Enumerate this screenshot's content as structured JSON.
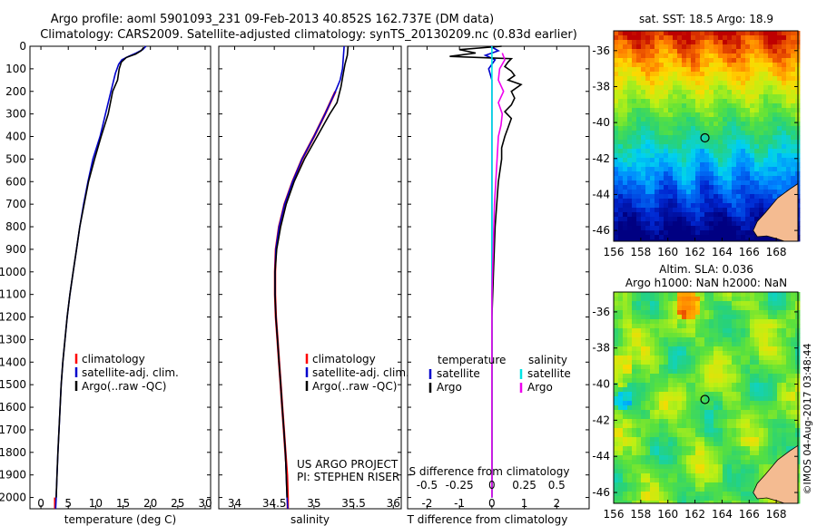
{
  "header": {
    "title_line1": "Argo profile: aoml 5901093_231 09-Feb-2013 40.852S 162.737E (DM data)",
    "title_line2": "Climatology: CARS2009. Satellite-adjusted climatology: synTS_20130209.nc (0.83d earlier)"
  },
  "watermark": "©IMOS 04-Aug-2017 03:48:44",
  "colors": {
    "climatology": "#ff0000",
    "satellite": "#0000cc",
    "argo": "#000000",
    "salinity_satellite": "#00e5e5",
    "salinity_argo": "#ee00ee",
    "land": "#f4bb91"
  },
  "chart_data": [
    {
      "id": "temperature",
      "type": "line",
      "xlabel": "temperature (deg C)",
      "xlim": [
        -2,
        31
      ],
      "xticks": [
        "0",
        "5",
        "10",
        "15",
        "20",
        "25",
        "30"
      ],
      "ylim": [
        2050,
        0
      ],
      "yticks": [
        "0",
        "100",
        "200",
        "300",
        "400",
        "500",
        "600",
        "700",
        "800",
        "900",
        "1000",
        "1100",
        "1200",
        "1300",
        "1400",
        "1500",
        "1600",
        "1700",
        "1800",
        "1900",
        "2000"
      ],
      "legend": [
        "climatology",
        "satellite-adj. clim.",
        "Argo(..raw -QC)"
      ],
      "series": [
        {
          "name": "climatology",
          "color": "#ff0000",
          "points": [
            [
              2.6,
              2000
            ],
            [
              2.6,
              2050
            ]
          ]
        },
        {
          "name": "satellite-adj. clim.",
          "color": "#0000cc",
          "points": [
            [
              19.2,
              0
            ],
            [
              18.6,
              15
            ],
            [
              17.4,
              30
            ],
            [
              16,
              45
            ],
            [
              14.8,
              60
            ],
            [
              14.2,
              80
            ],
            [
              13.6,
              120
            ],
            [
              12.8,
              200
            ],
            [
              11.8,
              300
            ],
            [
              10.8,
              400
            ],
            [
              9.5,
              500
            ],
            [
              8.6,
              600
            ],
            [
              7.8,
              700
            ],
            [
              7.1,
              800
            ],
            [
              6.5,
              900
            ],
            [
              5.9,
              1000
            ],
            [
              5.3,
              1100
            ],
            [
              4.8,
              1200
            ],
            [
              4.4,
              1300
            ],
            [
              4.0,
              1400
            ],
            [
              3.7,
              1500
            ],
            [
              3.5,
              1600
            ],
            [
              3.3,
              1700
            ],
            [
              3.1,
              1800
            ],
            [
              2.95,
              1900
            ],
            [
              2.8,
              2000
            ],
            [
              2.7,
              2050
            ]
          ]
        },
        {
          "name": "Argo(..raw -QC)",
          "color": "#000000",
          "points": [
            [
              18.8,
              5
            ],
            [
              18.3,
              20
            ],
            [
              17.3,
              35
            ],
            [
              15.6,
              50
            ],
            [
              14.7,
              70
            ],
            [
              14.3,
              100
            ],
            [
              14.0,
              150
            ],
            [
              13.1,
              200
            ],
            [
              12.3,
              300
            ],
            [
              11.0,
              400
            ],
            [
              9.8,
              500
            ],
            [
              8.7,
              600
            ],
            [
              7.9,
              700
            ],
            [
              7.1,
              800
            ],
            [
              6.5,
              900
            ],
            [
              5.9,
              1000
            ],
            [
              5.3,
              1100
            ],
            [
              4.8,
              1200
            ],
            [
              4.4,
              1300
            ],
            [
              4.0,
              1400
            ],
            [
              3.7,
              1500
            ],
            [
              3.5,
              1600
            ],
            [
              3.3,
              1700
            ],
            [
              3.1,
              1800
            ],
            [
              2.95,
              1900
            ],
            [
              2.8,
              2000
            ]
          ]
        }
      ]
    },
    {
      "id": "salinity",
      "type": "line",
      "xlabel": "salinity",
      "xlim": [
        33.8,
        36.1
      ],
      "xticks": [
        "34",
        "34.5",
        "35",
        "35.5",
        "36"
      ],
      "ylim": [
        2050,
        0
      ],
      "legend": [
        "climatology",
        "satellite-adj. clim.",
        "Argo(..raw -QC)"
      ],
      "annotation_line1": "US ARGO PROJECT",
      "annotation_line2": "PI: STEPHEN RISER",
      "series": [
        {
          "name": "climatology",
          "color": "#ff0000",
          "points": [
            [
              35.27,
              200
            ],
            [
              35.14,
              300
            ],
            [
              35.0,
              400
            ],
            [
              34.85,
              500
            ],
            [
              34.73,
              600
            ],
            [
              34.63,
              700
            ],
            [
              34.56,
              800
            ],
            [
              34.52,
              900
            ],
            [
              34.51,
              1000
            ],
            [
              34.51,
              1100
            ],
            [
              34.52,
              1200
            ],
            [
              34.54,
              1300
            ],
            [
              34.56,
              1400
            ],
            [
              34.58,
              1500
            ],
            [
              34.6,
              1600
            ],
            [
              34.62,
              1700
            ],
            [
              34.64,
              1800
            ],
            [
              34.66,
              1900
            ],
            [
              34.67,
              2000
            ],
            [
              34.67,
              2050
            ]
          ]
        },
        {
          "name": "satellite-adj. clim.",
          "color": "#0000cc",
          "points": [
            [
              35.38,
              0
            ],
            [
              35.37,
              50
            ],
            [
              35.36,
              100
            ],
            [
              35.33,
              150
            ],
            [
              35.27,
              200
            ],
            [
              35.14,
              300
            ],
            [
              35.0,
              400
            ],
            [
              34.85,
              500
            ],
            [
              34.73,
              600
            ],
            [
              34.63,
              700
            ],
            [
              34.56,
              800
            ],
            [
              34.52,
              900
            ],
            [
              34.51,
              1000
            ],
            [
              34.51,
              1100
            ],
            [
              34.52,
              1200
            ],
            [
              34.54,
              1300
            ],
            [
              34.56,
              1400
            ],
            [
              34.58,
              1500
            ],
            [
              34.6,
              1600
            ],
            [
              34.62,
              1700
            ],
            [
              34.64,
              1800
            ],
            [
              34.65,
              1900
            ],
            [
              34.66,
              2000
            ],
            [
              34.67,
              2050
            ]
          ]
        },
        {
          "name": "Argo(..raw -QC)",
          "color": "#000000",
          "points": [
            [
              35.43,
              0
            ],
            [
              35.42,
              40
            ],
            [
              35.39,
              80
            ],
            [
              35.37,
              120
            ],
            [
              35.34,
              180
            ],
            [
              35.29,
              250
            ],
            [
              35.2,
              300
            ],
            [
              35.04,
              400
            ],
            [
              34.88,
              500
            ],
            [
              34.75,
              600
            ],
            [
              34.65,
              700
            ],
            [
              34.58,
              800
            ],
            [
              34.53,
              900
            ],
            [
              34.51,
              1000
            ],
            [
              34.51,
              1100
            ],
            [
              34.52,
              1200
            ],
            [
              34.54,
              1300
            ],
            [
              34.56,
              1400
            ],
            [
              34.58,
              1500
            ],
            [
              34.6,
              1600
            ],
            [
              34.62,
              1700
            ],
            [
              34.64,
              1800
            ],
            [
              34.65,
              1900
            ],
            [
              34.66,
              2000
            ]
          ]
        }
      ]
    },
    {
      "id": "differences",
      "type": "line",
      "xlabel": "T difference from climatology",
      "xlabel_top": "S difference from climatology",
      "xlim": [
        -2.6,
        3.0
      ],
      "xticks": [
        "-2",
        "-1",
        "0",
        "1",
        "2"
      ],
      "sticks": [
        "-0.5",
        "-0.25",
        "0",
        "0.25",
        "0.5"
      ],
      "s_scale": 4,
      "ylim": [
        2050,
        0
      ],
      "legend_left_title": "temperature",
      "legend_right_title": "salinity",
      "legend_left": [
        "satellite",
        "Argo"
      ],
      "legend_right": [
        "satellite",
        "Argo"
      ],
      "series": [
        {
          "name": "satellite",
          "group": "temperature",
          "color": "#0000cc",
          "points": [
            [
              -0.05,
              0
            ],
            [
              0.2,
              20
            ],
            [
              -0.2,
              40
            ],
            [
              0.1,
              60
            ],
            [
              -0.1,
              100
            ],
            [
              0,
              150
            ],
            [
              0,
              200
            ],
            [
              0,
              2000
            ]
          ]
        },
        {
          "name": "Argo",
          "group": "temperature",
          "color": "#000000",
          "points": [
            [
              0.3,
              0
            ],
            [
              -1.0,
              15
            ],
            [
              -0.5,
              30
            ],
            [
              -1.3,
              45
            ],
            [
              0.6,
              55
            ],
            [
              0.5,
              70
            ],
            [
              0.4,
              90
            ],
            [
              0.6,
              110
            ],
            [
              0.7,
              130
            ],
            [
              0.5,
              150
            ],
            [
              0.9,
              170
            ],
            [
              0.6,
              200
            ],
            [
              0.7,
              230
            ],
            [
              0.6,
              260
            ],
            [
              0.4,
              290
            ],
            [
              0.6,
              320
            ],
            [
              0.5,
              360
            ],
            [
              0.4,
              400
            ],
            [
              0.3,
              450
            ],
            [
              0.3,
              500
            ],
            [
              0.2,
              600
            ],
            [
              0.1,
              800
            ],
            [
              0.05,
              1000
            ],
            [
              0,
              1200
            ],
            [
              0,
              2000
            ]
          ]
        },
        {
          "name": "satellite",
          "group": "salinity",
          "color": "#00e5e5",
          "points": [
            [
              0,
              0
            ],
            [
              0,
              100
            ],
            [
              0,
              300
            ],
            [
              0,
              2000
            ]
          ]
        },
        {
          "name": "Argo",
          "group": "salinity",
          "color": "#ee00ee",
          "points": [
            [
              0.08,
              30
            ],
            [
              0.1,
              60
            ],
            [
              0.06,
              100
            ],
            [
              0.05,
              150
            ],
            [
              0.09,
              200
            ],
            [
              0.05,
              250
            ],
            [
              0.08,
              300
            ],
            [
              0.07,
              350
            ],
            [
              0.05,
              400
            ],
            [
              0.04,
              500
            ],
            [
              0.02,
              700
            ],
            [
              0.01,
              900
            ],
            [
              0,
              1100
            ],
            [
              0,
              2000
            ]
          ]
        }
      ]
    },
    {
      "id": "sst_map",
      "type": "heatmap",
      "title": "sat. SST: 18.5 Argo: 18.9",
      "xticks": [
        "156",
        "158",
        "160",
        "162",
        "164",
        "166",
        "168"
      ],
      "yticks": [
        "-36",
        "-38",
        "-40",
        "-42",
        "-44",
        "-46"
      ],
      "marker": [
        162.737,
        -40.852
      ]
    },
    {
      "id": "sla_map",
      "type": "heatmap",
      "title_line1": "Altim. SLA: 0.036",
      "title_line2": "Argo h1000: NaN h2000: NaN",
      "xticks": [
        "156",
        "158",
        "160",
        "162",
        "164",
        "166",
        "168"
      ],
      "yticks": [
        "-36",
        "-38",
        "-40",
        "-42",
        "-44",
        "-46"
      ],
      "marker": [
        162.737,
        -40.852
      ]
    }
  ]
}
